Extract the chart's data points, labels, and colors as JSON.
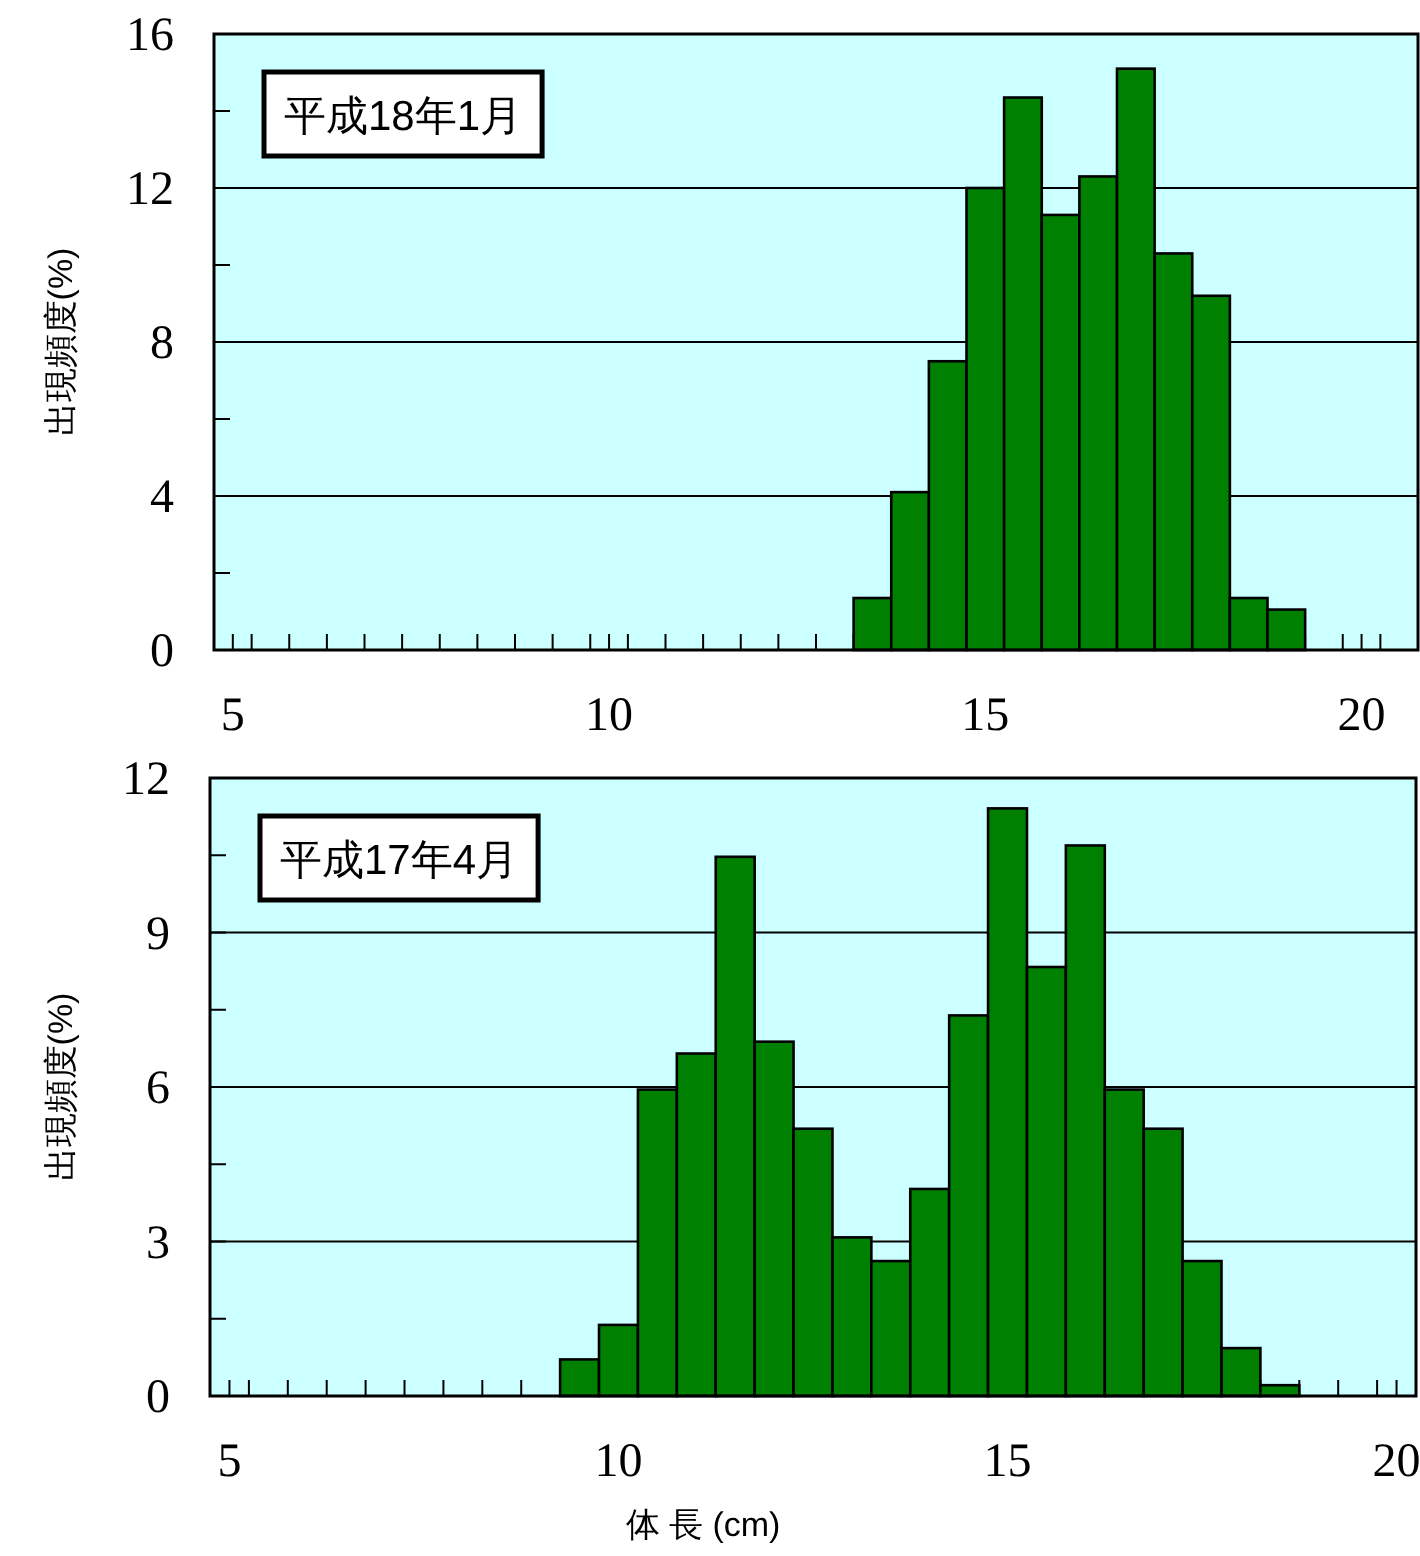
{
  "chart_data": [
    {
      "type": "histogram",
      "ylabel": "出現頻度(%)",
      "annotations": [
        "平成18年1月"
      ],
      "color": "#008000",
      "bins": [
        13.25,
        13.75,
        14.25,
        14.75,
        15.25,
        15.75,
        16.25,
        16.75,
        17.25,
        17.75,
        18.25,
        18.75,
        19.25
      ],
      "values": [
        1.35,
        4.1,
        7.5,
        12.0,
        14.35,
        11.3,
        12.3,
        15.1,
        10.3,
        9.2,
        1.35,
        1.05
      ],
      "xlim": [
        4.75,
        20.75
      ],
      "ylim": [
        0,
        16
      ],
      "grid": "y",
      "xticks": [
        5,
        10,
        15,
        20,
        {
          "value": 5.25,
          "label": null
        },
        {
          "value": 5.75,
          "label": null
        },
        {
          "value": 6.25,
          "label": null
        },
        {
          "value": 6.75,
          "label": null
        },
        {
          "value": 7.25,
          "label": null
        },
        {
          "value": 7.75,
          "label": null
        },
        {
          "value": 8.25,
          "label": null
        },
        {
          "value": 8.75,
          "label": null
        },
        {
          "value": 9.25,
          "label": null
        },
        {
          "value": 9.75,
          "label": null
        },
        {
          "value": 10.25,
          "label": null
        },
        {
          "value": 10.75,
          "label": null
        },
        {
          "value": 11.25,
          "label": null
        },
        {
          "value": 11.75,
          "label": null
        },
        {
          "value": 12.25,
          "label": null
        },
        {
          "value": 12.75,
          "label": null
        },
        {
          "value": 13.25,
          "label": null
        },
        {
          "value": 13.75,
          "label": null
        },
        {
          "value": 14.25,
          "label": null
        },
        {
          "value": 14.75,
          "label": null
        },
        {
          "value": 15.25,
          "label": null
        },
        {
          "value": 15.75,
          "label": null
        },
        {
          "value": 16.25,
          "label": null
        },
        {
          "value": 16.75,
          "label": null
        },
        {
          "value": 17.25,
          "label": null
        },
        {
          "value": 17.75,
          "label": null
        },
        {
          "value": 18.25,
          "label": null
        },
        {
          "value": 18.75,
          "label": null
        },
        {
          "value": 19.25,
          "label": null
        },
        {
          "value": 19.75,
          "label": null
        },
        {
          "value": 20.25,
          "label": null
        }
      ],
      "yticks": [
        0,
        {
          "value": 2,
          "label": null
        },
        4,
        {
          "value": 6,
          "label": null
        },
        8,
        {
          "value": 10,
          "label": null
        },
        12,
        {
          "value": 14,
          "label": null
        },
        16
      ]
    },
    {
      "type": "histogram",
      "ylabel": "出現頻度(%)",
      "xlabel": "体 長 (cm)",
      "annotations": [
        "平成17年4月"
      ],
      "color": "#008000",
      "bins": [
        9.25,
        9.75,
        10.25,
        10.75,
        11.25,
        11.75,
        12.25,
        12.75,
        13.25,
        13.75,
        14.25,
        14.75,
        15.25,
        15.75,
        16.25,
        16.75,
        17.25,
        17.75,
        18.25,
        18.75
      ],
      "values": [
        0.71,
        1.38,
        5.95,
        6.65,
        10.47,
        6.88,
        5.19,
        3.08,
        2.62,
        4.02,
        7.39,
        11.41,
        8.33,
        10.69,
        5.95,
        5.19,
        2.62,
        0.93,
        0.21
      ],
      "xlim": [
        4.75,
        20.25
      ],
      "ylim": [
        0,
        12
      ],
      "grid": "y",
      "xticks": [
        5,
        10,
        15,
        20,
        {
          "value": 5.25,
          "label": null
        },
        {
          "value": 5.75,
          "label": null
        },
        {
          "value": 6.25,
          "label": null
        },
        {
          "value": 6.75,
          "label": null
        },
        {
          "value": 7.25,
          "label": null
        },
        {
          "value": 7.75,
          "label": null
        },
        {
          "value": 8.25,
          "label": null
        },
        {
          "value": 8.75,
          "label": null
        },
        {
          "value": 9.25,
          "label": null
        },
        {
          "value": 9.75,
          "label": null
        },
        {
          "value": 10.25,
          "label": null
        },
        {
          "value": 10.75,
          "label": null
        },
        {
          "value": 11.25,
          "label": null
        },
        {
          "value": 11.75,
          "label": null
        },
        {
          "value": 12.25,
          "label": null
        },
        {
          "value": 12.75,
          "label": null
        },
        {
          "value": 13.25,
          "label": null
        },
        {
          "value": 13.75,
          "label": null
        },
        {
          "value": 14.25,
          "label": null
        },
        {
          "value": 14.75,
          "label": null
        },
        {
          "value": 15.25,
          "label": null
        },
        {
          "value": 15.75,
          "label": null
        },
        {
          "value": 16.25,
          "label": null
        },
        {
          "value": 16.75,
          "label": null
        },
        {
          "value": 17.25,
          "label": null
        },
        {
          "value": 17.75,
          "label": null
        },
        {
          "value": 18.25,
          "label": null
        },
        {
          "value": 18.75,
          "label": null
        },
        {
          "value": 19.25,
          "label": null
        },
        {
          "value": 19.75,
          "label": null
        }
      ],
      "yticks": [
        0,
        {
          "value": 1.5,
          "label": null
        },
        3,
        {
          "value": 4.5,
          "label": null
        },
        6,
        {
          "value": 7.5,
          "label": null
        },
        9,
        {
          "value": 10.5,
          "label": null
        },
        12
      ]
    }
  ]
}
